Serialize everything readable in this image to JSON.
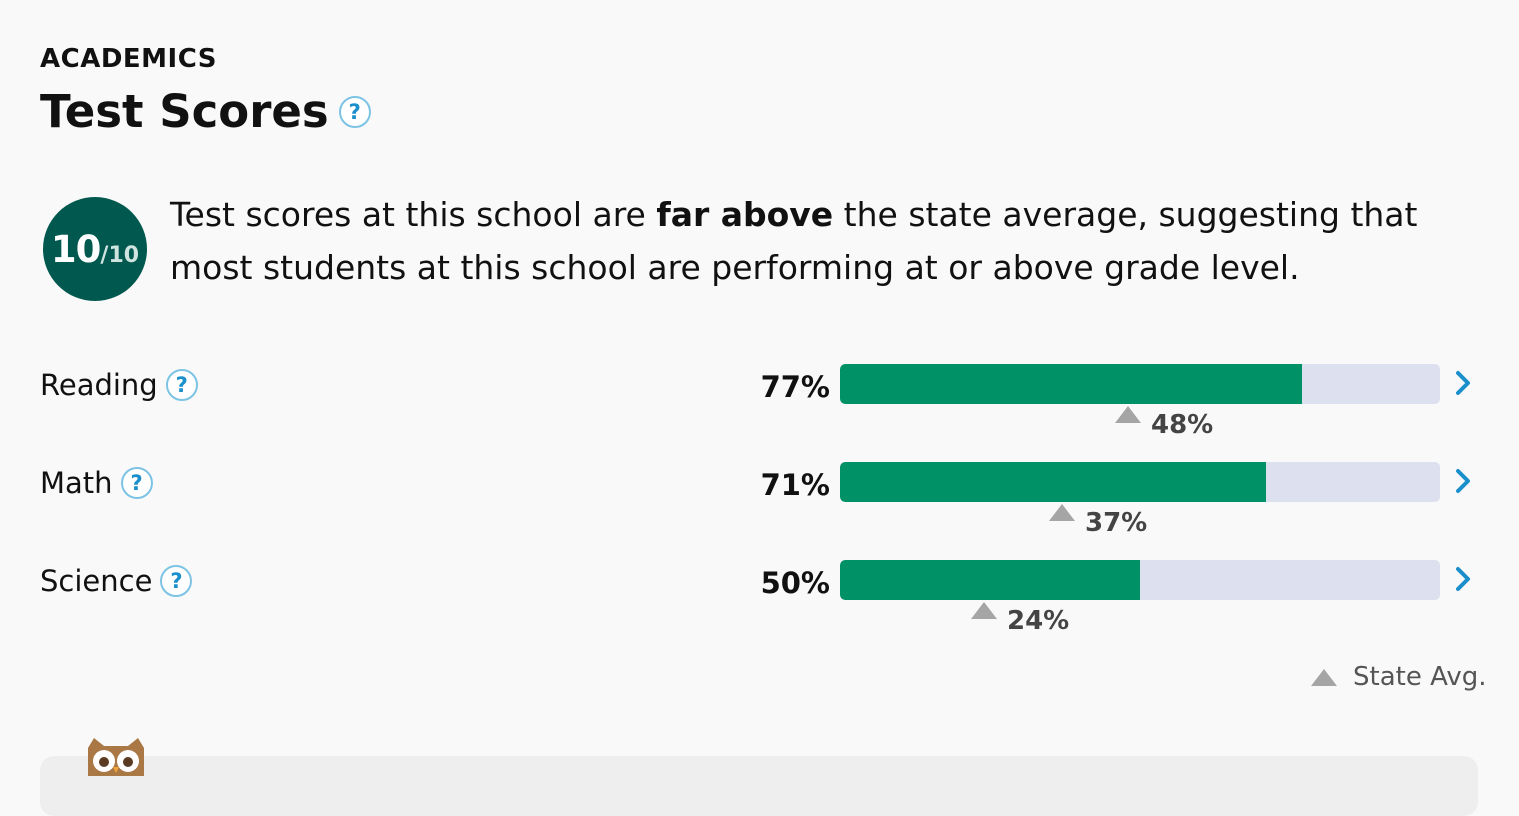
{
  "section": {
    "label": "ACADEMICS",
    "title": "Test Scores"
  },
  "rating": {
    "score": "10",
    "max": "/10"
  },
  "summary": {
    "before": "Test scores at this school are ",
    "emphasis": "far above",
    "after": " the state average, suggesting that most students at this school are performing at or above grade level."
  },
  "subjects": [
    {
      "name": "Reading",
      "score_label": "77%",
      "score": 77,
      "state_label": "48%",
      "state": 48
    },
    {
      "name": "Math",
      "score_label": "71%",
      "score": 71,
      "state_label": "37%",
      "state": 37
    },
    {
      "name": "Science",
      "score_label": "50%",
      "score": 50,
      "state_label": "24%",
      "state": 24
    }
  ],
  "legend": {
    "label": "State Avg."
  },
  "icons": {
    "help": "?"
  },
  "colors": {
    "bar_fill": "#009166",
    "bar_track": "#dde0ef",
    "badge": "#00584f",
    "accent": "#1a8fcb",
    "state_marker": "#a5a5a5"
  }
}
